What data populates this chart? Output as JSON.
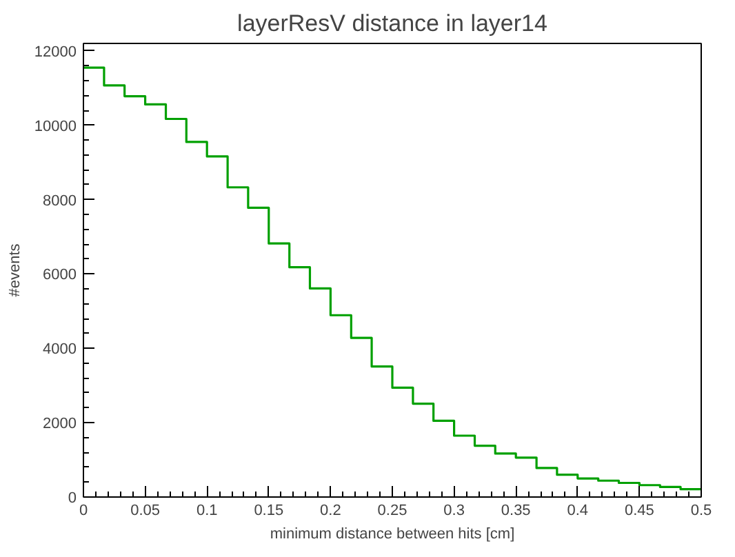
{
  "chart_data": {
    "type": "histogram",
    "title": "layerResV distance in layer14",
    "xlabel": "minimum distance between hits [cm]",
    "ylabel": "#events",
    "bins": [
      0,
      0.0167,
      0.0333,
      0.05,
      0.0667,
      0.0833,
      0.1,
      0.1167,
      0.1333,
      0.15,
      0.1667,
      0.1833,
      0.2,
      0.2167,
      0.2333,
      0.25,
      0.2667,
      0.2833,
      0.3,
      0.3167,
      0.3333,
      0.35,
      0.3667,
      0.3833,
      0.4,
      0.4167,
      0.4333,
      0.45,
      0.4667,
      0.4833,
      0.5
    ],
    "values": [
      11550,
      11070,
      10780,
      10560,
      10170,
      9550,
      9160,
      8330,
      7780,
      6820,
      6180,
      5610,
      4890,
      4280,
      3510,
      2940,
      2510,
      2050,
      1650,
      1380,
      1170,
      1060,
      780,
      600,
      500,
      440,
      380,
      320,
      270,
      210
    ],
    "color": "#00a000",
    "xlim": [
      0,
      0.5
    ],
    "ylim": [
      0,
      12200
    ],
    "xticks": [
      0,
      0.05,
      0.1,
      0.15,
      0.2,
      0.25,
      0.3,
      0.35,
      0.4,
      0.45,
      0.5
    ],
    "yticks": [
      0,
      2000,
      4000,
      6000,
      8000,
      10000,
      12000
    ],
    "grid": false
  }
}
